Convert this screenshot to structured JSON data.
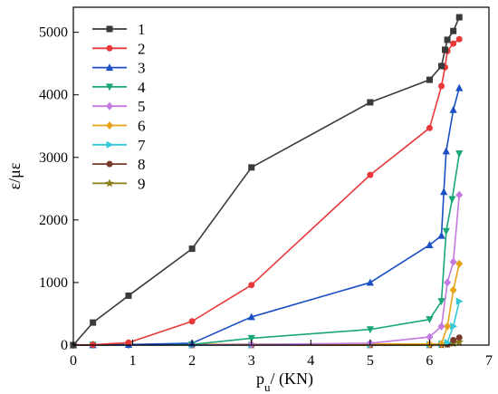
{
  "chart_data": {
    "type": "line",
    "xlabel_main": "p",
    "xlabel_sub": "u",
    "xlabel_unit": "/ (KN)",
    "ylabel": "ε/με",
    "xlim": [
      0,
      7
    ],
    "ylim": [
      0,
      5400
    ],
    "xticks": [
      0,
      1,
      2,
      3,
      4,
      5,
      6,
      7
    ],
    "yticks": [
      0,
      1000,
      2000,
      3000,
      4000,
      5000
    ],
    "grid": false,
    "legend_position": "top-left",
    "series": [
      {
        "name": "1",
        "color": "#3a3a3a",
        "marker": "square",
        "points": [
          [
            0,
            0
          ],
          [
            0.33,
            360
          ],
          [
            0.93,
            790
          ],
          [
            2,
            1540
          ],
          [
            3,
            2840
          ],
          [
            5,
            3880
          ],
          [
            6,
            4240
          ],
          [
            6.2,
            4460
          ],
          [
            6.26,
            4720
          ],
          [
            6.3,
            4880
          ],
          [
            6.4,
            5020
          ],
          [
            6.5,
            5240
          ]
        ]
      },
      {
        "name": "2",
        "color": "#e8383a",
        "marker": "circle",
        "points": [
          [
            0,
            0
          ],
          [
            0.33,
            5
          ],
          [
            0.93,
            40
          ],
          [
            2,
            380
          ],
          [
            3,
            960
          ],
          [
            5,
            2720
          ],
          [
            6,
            3470
          ],
          [
            6.2,
            4140
          ],
          [
            6.26,
            4440
          ],
          [
            6.3,
            4700
          ],
          [
            6.4,
            4820
          ],
          [
            6.5,
            4890
          ]
        ]
      },
      {
        "name": "3",
        "color": "#1b4fc4",
        "marker": "triangle-up",
        "points": [
          [
            0,
            0
          ],
          [
            0.33,
            2
          ],
          [
            0.93,
            8
          ],
          [
            2,
            30
          ],
          [
            3,
            450
          ],
          [
            5,
            1000
          ],
          [
            6,
            1600
          ],
          [
            6.2,
            1750
          ],
          [
            6.24,
            2450
          ],
          [
            6.28,
            3100
          ],
          [
            6.4,
            3760
          ],
          [
            6.5,
            4110
          ]
        ]
      },
      {
        "name": "4",
        "color": "#1aa67a",
        "marker": "triangle-down",
        "points": [
          [
            0,
            0
          ],
          [
            0.33,
            1
          ],
          [
            0.93,
            3
          ],
          [
            2,
            10
          ],
          [
            3,
            110
          ],
          [
            5,
            250
          ],
          [
            6,
            410
          ],
          [
            6.2,
            700
          ],
          [
            6.28,
            1820
          ],
          [
            6.38,
            2330
          ],
          [
            6.5,
            3060
          ]
        ]
      },
      {
        "name": "5",
        "color": "#c47ae0",
        "marker": "diamond",
        "points": [
          [
            0,
            0
          ],
          [
            0.93,
            1
          ],
          [
            2,
            3
          ],
          [
            3,
            10
          ],
          [
            5,
            30
          ],
          [
            6,
            130
          ],
          [
            6.2,
            300
          ],
          [
            6.3,
            1000
          ],
          [
            6.4,
            1330
          ],
          [
            6.5,
            2400
          ]
        ]
      },
      {
        "name": "6",
        "color": "#e8a21a",
        "marker": "diamond",
        "points": [
          [
            0,
            0
          ],
          [
            0.33,
            8
          ],
          [
            0.93,
            10
          ],
          [
            2,
            12
          ],
          [
            3,
            15
          ],
          [
            5,
            17
          ],
          [
            6,
            18
          ],
          [
            6.2,
            20
          ],
          [
            6.3,
            300
          ],
          [
            6.4,
            880
          ],
          [
            6.5,
            1300
          ]
        ]
      },
      {
        "name": "7",
        "color": "#33c8d6",
        "marker": "triangle-right",
        "points": [
          [
            0,
            0
          ],
          [
            2,
            0
          ],
          [
            3,
            2
          ],
          [
            5,
            4
          ],
          [
            6,
            8
          ],
          [
            6.2,
            20
          ],
          [
            6.3,
            40
          ],
          [
            6.4,
            300
          ],
          [
            6.5,
            700
          ]
        ]
      },
      {
        "name": "8",
        "color": "#7a3b2e",
        "marker": "circle",
        "points": [
          [
            0,
            0
          ],
          [
            2,
            0
          ],
          [
            3,
            0
          ],
          [
            5,
            1
          ],
          [
            6,
            2
          ],
          [
            6.2,
            5
          ],
          [
            6.3,
            10
          ],
          [
            6.4,
            80
          ],
          [
            6.5,
            120
          ]
        ]
      },
      {
        "name": "9",
        "color": "#8a7c18",
        "marker": "star",
        "points": [
          [
            0,
            0
          ],
          [
            2,
            0
          ],
          [
            3,
            0
          ],
          [
            5,
            0
          ],
          [
            6,
            1
          ],
          [
            6.2,
            3
          ],
          [
            6.3,
            10
          ],
          [
            6.4,
            25
          ],
          [
            6.5,
            50
          ]
        ]
      }
    ]
  }
}
